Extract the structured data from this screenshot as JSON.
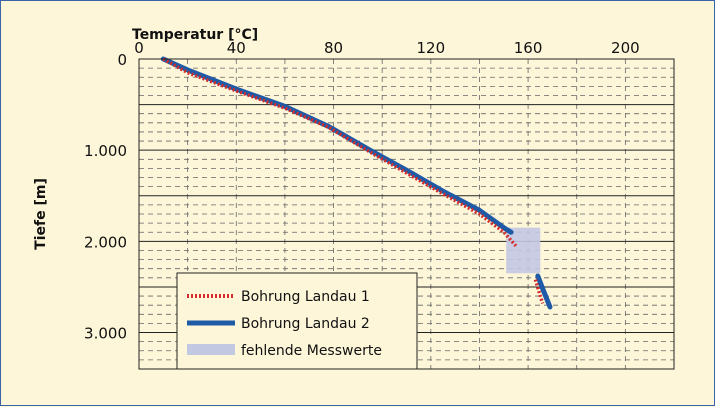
{
  "chart_data": {
    "type": "line",
    "xlabel": "Temperatur [°C]",
    "ylabel": "Tiefe [m]",
    "xlim": [
      0,
      220
    ],
    "ylim": [
      0,
      3400
    ],
    "x_axis_position": "top",
    "y_axis_inverted": true,
    "x_ticks": [
      0,
      40,
      80,
      120,
      160,
      200
    ],
    "x_tick_labels": [
      "0",
      "40",
      "80",
      "120",
      "160",
      "200"
    ],
    "y_ticks": [
      0,
      1000,
      2000,
      3000
    ],
    "y_tick_labels": [
      "0",
      "1.000",
      "2.000",
      "3.000"
    ],
    "grid": true,
    "legend_position": "bottom-left",
    "series": [
      {
        "name": "Bohrung Landau 1",
        "color": "#d42b2b",
        "style": "dotted",
        "segments": [
          [
            [
              10,
              0
            ],
            [
              20,
              150
            ],
            [
              40,
              350
            ],
            [
              60,
              540
            ],
            [
              78,
              750
            ],
            [
              95,
              1020
            ],
            [
              110,
              1250
            ],
            [
              125,
              1480
            ],
            [
              140,
              1700
            ],
            [
              150,
              1900
            ],
            [
              155,
              2050
            ]
          ],
          [
            [
              163,
              2420
            ],
            [
              165,
              2600
            ],
            [
              166,
              2680
            ]
          ]
        ]
      },
      {
        "name": "Bohrung Landau 2",
        "color": "#1f5aa6",
        "style": "solid",
        "segments": [
          [
            [
              10,
              0
            ],
            [
              20,
              120
            ],
            [
              40,
              330
            ],
            [
              60,
              520
            ],
            [
              78,
              740
            ],
            [
              95,
              1000
            ],
            [
              110,
              1220
            ],
            [
              125,
              1450
            ],
            [
              140,
              1660
            ],
            [
              150,
              1850
            ],
            [
              153,
              1900
            ]
          ],
          [
            [
              164,
              2380
            ],
            [
              166,
              2520
            ],
            [
              169,
              2720
            ]
          ]
        ]
      }
    ],
    "missing_region": {
      "name": "fehlende Messwerte",
      "color": "#c3c8e2",
      "x": [
        151,
        165
      ],
      "y": [
        1850,
        2350
      ]
    }
  }
}
